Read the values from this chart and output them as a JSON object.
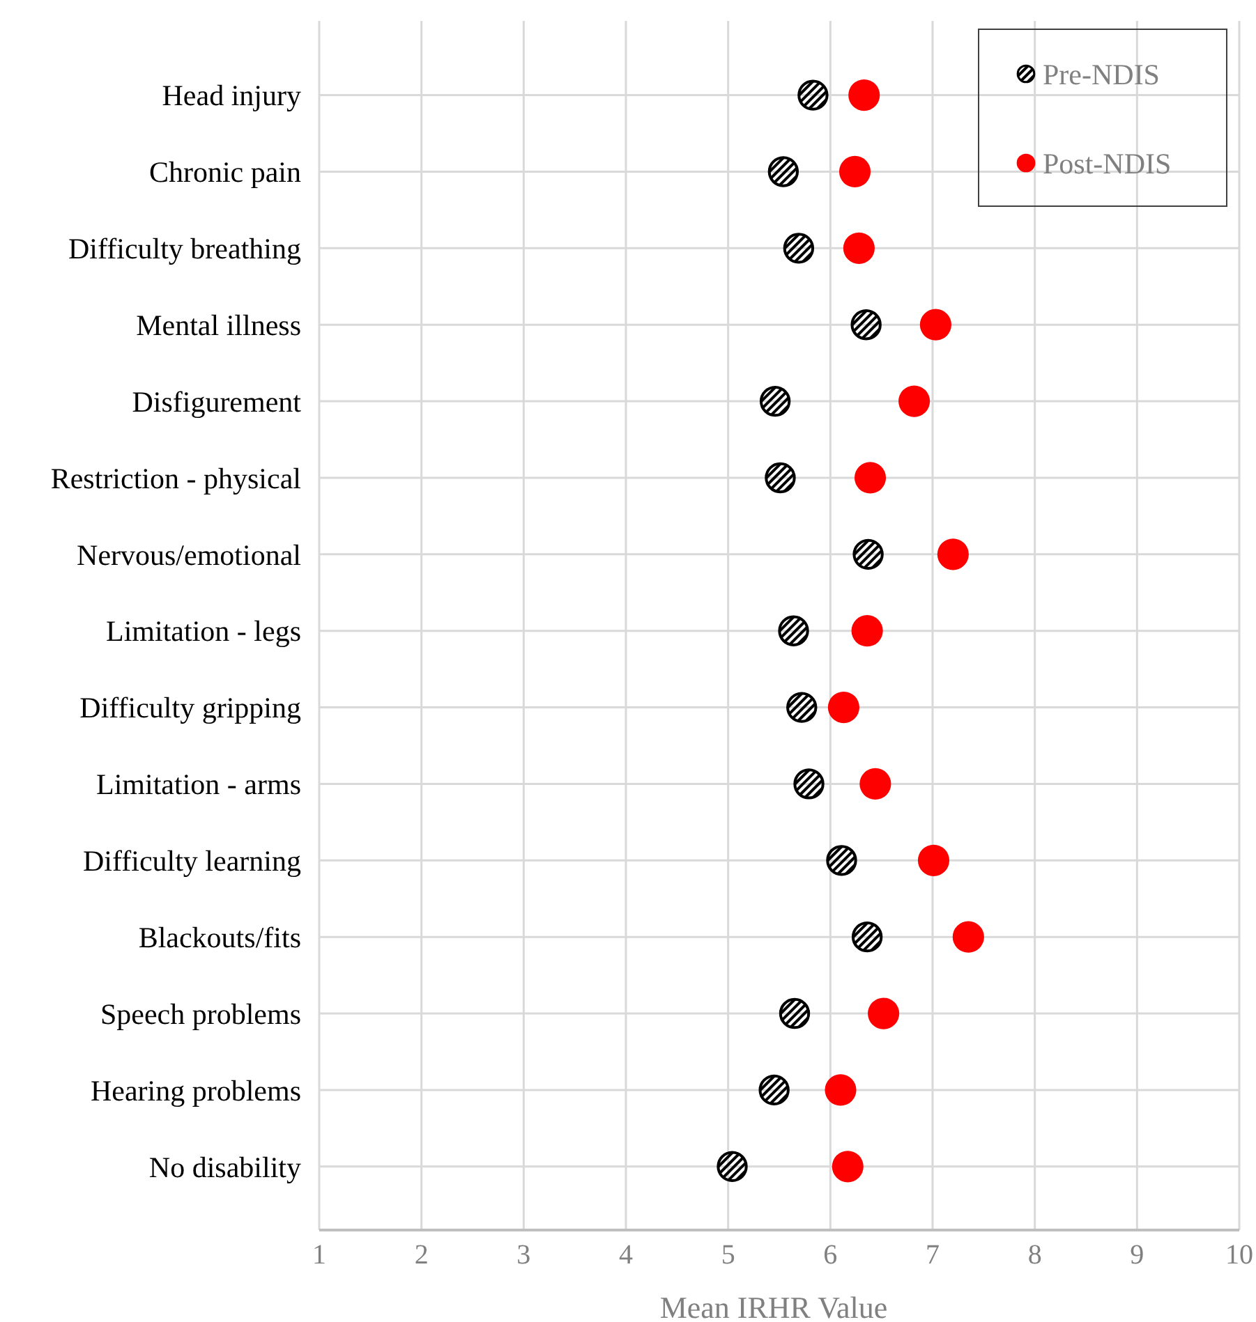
{
  "chart_data": {
    "type": "scatter",
    "orientation": "horizontal",
    "xlabel": "Mean IRHR Value",
    "categories": [
      "Head injury",
      "Chronic pain",
      "Difficulty breathing",
      "Mental illness",
      "Disfigurement",
      "Restriction - physical",
      "Nervous/emotional",
      "Limitation - legs",
      "Difficulty gripping",
      "Limitation - arms",
      "Difficulty learning",
      "Blackouts/fits",
      "Speech problems",
      "Hearing problems",
      "No disability"
    ],
    "series": [
      {
        "name": "Pre-NDIS",
        "color": "#000000",
        "values": [
          5.83,
          5.54,
          5.69,
          6.35,
          5.46,
          5.51,
          6.37,
          5.64,
          5.72,
          5.79,
          6.11,
          6.36,
          5.65,
          5.45,
          5.04
        ]
      },
      {
        "name": "Post-NDIS",
        "color": "#ff0000",
        "values": [
          6.33,
          6.24,
          6.28,
          7.03,
          6.82,
          6.39,
          7.2,
          6.36,
          6.13,
          6.44,
          7.01,
          7.35,
          6.52,
          6.1,
          6.17
        ]
      }
    ],
    "xlim": [
      1,
      10
    ],
    "xticks": [
      1,
      2,
      3,
      4,
      5,
      6,
      7,
      8,
      9,
      10
    ],
    "grid": true,
    "legend": "top right",
    "marker": "circle"
  }
}
